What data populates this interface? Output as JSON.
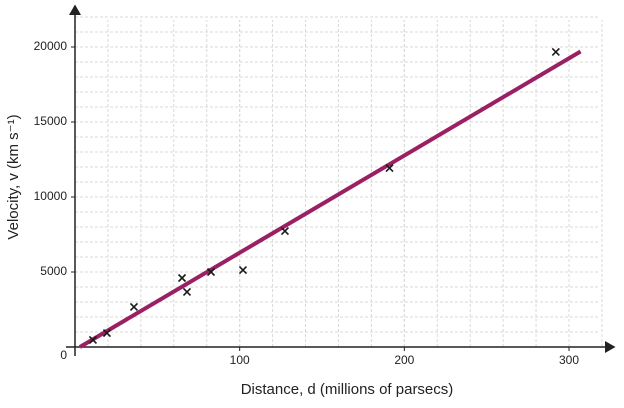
{
  "chart_data": {
    "type": "scatter",
    "x_label": "Distance, d (millions of parsecs)",
    "y_label": "Velocity, v (km s⁻¹)",
    "xlim": [
      0,
      326
    ],
    "ylim": [
      0,
      22600
    ],
    "xticks": [
      100,
      200,
      300
    ],
    "yticks": [
      0,
      5000,
      10000,
      15000,
      20000
    ],
    "grid": true,
    "series": [
      {
        "type": "scatter",
        "color": "#1a1a1a",
        "x": [
          10.9,
          19.4,
          35.8,
          65,
          68,
          82.6,
          102,
          127.5,
          191,
          292
        ],
        "values": [
          470,
          930,
          2670,
          4600,
          3670,
          5000,
          5130,
          7730,
          11930,
          19670
        ]
      },
      {
        "type": "line",
        "color": "#9b1f63",
        "x": [
          3,
          307
        ],
        "values": [
          0,
          19700
        ]
      }
    ]
  }
}
